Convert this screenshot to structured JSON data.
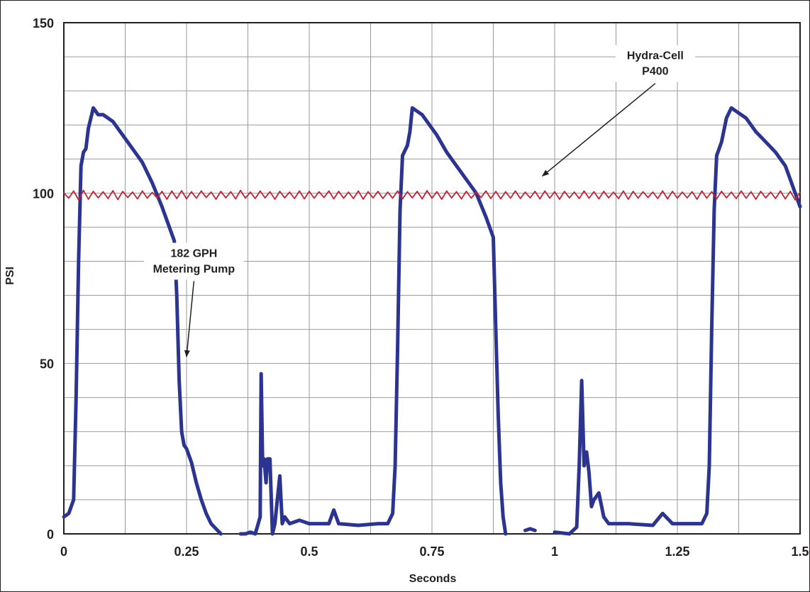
{
  "chart_data": {
    "type": "line",
    "title": "",
    "xlabel": "Seconds",
    "ylabel": "PSI",
    "xlim": [
      0,
      1.5
    ],
    "ylim": [
      0,
      150
    ],
    "grid": true,
    "x_ticks": [
      {
        "value": 0,
        "label": "0"
      },
      {
        "value": 0.25,
        "label": "0.25"
      },
      {
        "value": 0.5,
        "label": "0.5"
      },
      {
        "value": 0.75,
        "label": "0.75"
      },
      {
        "value": 1,
        "label": "1"
      },
      {
        "value": 1.25,
        "label": "1.25"
      },
      {
        "value": 1.5,
        "label": "1.5"
      }
    ],
    "y_ticks": [
      {
        "value": 0,
        "label": "0"
      },
      {
        "value": 50,
        "label": "50"
      },
      {
        "value": 100,
        "label": "100"
      },
      {
        "value": 150,
        "label": "150"
      }
    ],
    "x_minor_step": 0.125,
    "y_minor_step": 10,
    "series": [
      {
        "color": "#2b3490",
        "points": [
          [
            0.0,
            5
          ],
          [
            0.01,
            6
          ],
          [
            0.02,
            10
          ],
          [
            0.025,
            40
          ],
          [
            0.03,
            80
          ],
          [
            0.035,
            108
          ],
          [
            0.04,
            112
          ],
          [
            0.045,
            113
          ],
          [
            0.05,
            119
          ],
          [
            0.055,
            122
          ],
          [
            0.06,
            125
          ],
          [
            0.065,
            124
          ],
          [
            0.07,
            123
          ],
          [
            0.08,
            123
          ],
          [
            0.09,
            122
          ],
          [
            0.1,
            121
          ],
          [
            0.11,
            119
          ],
          [
            0.12,
            117
          ],
          [
            0.14,
            113
          ],
          [
            0.16,
            109
          ],
          [
            0.18,
            103
          ],
          [
            0.2,
            96
          ],
          [
            0.21,
            92
          ],
          [
            0.22,
            88
          ],
          [
            0.225,
            86
          ],
          [
            0.23,
            70
          ],
          [
            0.235,
            45
          ],
          [
            0.24,
            30
          ],
          [
            0.245,
            26
          ],
          [
            0.25,
            25
          ],
          [
            0.26,
            21
          ],
          [
            0.27,
            15
          ],
          [
            0.28,
            10
          ],
          [
            0.29,
            6
          ],
          [
            0.3,
            3
          ],
          [
            0.31,
            1.5
          ],
          [
            0.32,
            0
          ],
          [
            0.35,
            null
          ],
          [
            0.36,
            0
          ],
          [
            0.37,
            0
          ],
          [
            0.38,
            0.5
          ],
          [
            0.39,
            0
          ],
          [
            0.4,
            5
          ],
          [
            0.402,
            47
          ],
          [
            0.405,
            20
          ],
          [
            0.408,
            22
          ],
          [
            0.412,
            15
          ],
          [
            0.415,
            22
          ],
          [
            0.42,
            22
          ],
          [
            0.425,
            0
          ],
          [
            0.43,
            3
          ],
          [
            0.435,
            10
          ],
          [
            0.44,
            17
          ],
          [
            0.445,
            3
          ],
          [
            0.45,
            5
          ],
          [
            0.46,
            3
          ],
          [
            0.48,
            4
          ],
          [
            0.5,
            3
          ],
          [
            0.52,
            3
          ],
          [
            0.54,
            3
          ],
          [
            0.55,
            7
          ],
          [
            0.56,
            3
          ],
          [
            0.6,
            2.5
          ],
          [
            0.64,
            3
          ],
          [
            0.66,
            3
          ],
          [
            0.67,
            6
          ],
          [
            0.675,
            20
          ],
          [
            0.68,
            55
          ],
          [
            0.685,
            95
          ],
          [
            0.69,
            111
          ],
          [
            0.7,
            114
          ],
          [
            0.705,
            118
          ],
          [
            0.71,
            125
          ],
          [
            0.72,
            124
          ],
          [
            0.73,
            123
          ],
          [
            0.74,
            121
          ],
          [
            0.76,
            117
          ],
          [
            0.78,
            112
          ],
          [
            0.8,
            108
          ],
          [
            0.82,
            104
          ],
          [
            0.84,
            100
          ],
          [
            0.86,
            93
          ],
          [
            0.875,
            87
          ],
          [
            0.88,
            60
          ],
          [
            0.885,
            35
          ],
          [
            0.89,
            15
          ],
          [
            0.895,
            5
          ],
          [
            0.9,
            0
          ],
          [
            0.93,
            null
          ],
          [
            0.94,
            1
          ],
          [
            0.95,
            1.5
          ],
          [
            0.96,
            1
          ],
          [
            0.99,
            null
          ],
          [
            1.0,
            0.5
          ],
          [
            1.03,
            0
          ],
          [
            1.045,
            2
          ],
          [
            1.05,
            20
          ],
          [
            1.055,
            45
          ],
          [
            1.06,
            20
          ],
          [
            1.065,
            24
          ],
          [
            1.07,
            18
          ],
          [
            1.075,
            8
          ],
          [
            1.08,
            10
          ],
          [
            1.09,
            12
          ],
          [
            1.1,
            5
          ],
          [
            1.11,
            3
          ],
          [
            1.15,
            3
          ],
          [
            1.2,
            2.5
          ],
          [
            1.22,
            6
          ],
          [
            1.24,
            3
          ],
          [
            1.28,
            3
          ],
          [
            1.3,
            3
          ],
          [
            1.31,
            6
          ],
          [
            1.315,
            20
          ],
          [
            1.32,
            60
          ],
          [
            1.325,
            95
          ],
          [
            1.33,
            111
          ],
          [
            1.34,
            115
          ],
          [
            1.35,
            122
          ],
          [
            1.36,
            125
          ],
          [
            1.37,
            124
          ],
          [
            1.38,
            123
          ],
          [
            1.39,
            122
          ],
          [
            1.41,
            118
          ],
          [
            1.43,
            115
          ],
          [
            1.45,
            112
          ],
          [
            1.47,
            108
          ],
          [
            1.48,
            104
          ],
          [
            1.49,
            100
          ],
          [
            1.5,
            96
          ]
        ]
      },
      {
        "color": "#c8202f",
        "points": [
          [
            0.0,
            100
          ],
          [
            0.01,
            98.5
          ],
          [
            0.02,
            100.6
          ],
          [
            0.03,
            98
          ],
          [
            0.04,
            100.8
          ],
          [
            0.05,
            98.2
          ],
          [
            0.06,
            100.5
          ],
          [
            0.07,
            98.6
          ],
          [
            0.08,
            100.4
          ],
          [
            0.09,
            98.4
          ],
          [
            0.1,
            100.7
          ],
          [
            0.11,
            98.1
          ],
          [
            0.12,
            100.5
          ],
          [
            0.13,
            98.7
          ],
          [
            0.14,
            100.3
          ],
          [
            0.15,
            98.3
          ],
          [
            0.16,
            100.6
          ],
          [
            0.17,
            98.5
          ],
          [
            0.18,
            100.2
          ],
          [
            0.19,
            98.6
          ],
          [
            0.2,
            100.5
          ],
          [
            0.21,
            98.2
          ],
          [
            0.22,
            100.6
          ],
          [
            0.23,
            98.4
          ],
          [
            0.24,
            100.7
          ],
          [
            0.25,
            98.3
          ],
          [
            0.26,
            100.4
          ],
          [
            0.27,
            98.5
          ],
          [
            0.28,
            100.6
          ],
          [
            0.29,
            98.7
          ],
          [
            0.3,
            100.3
          ],
          [
            0.31,
            98.2
          ],
          [
            0.32,
            100.5
          ],
          [
            0.33,
            98.6
          ],
          [
            0.34,
            100.4
          ],
          [
            0.35,
            98.3
          ],
          [
            0.36,
            100.8
          ],
          [
            0.37,
            98.5
          ],
          [
            0.38,
            100.3
          ],
          [
            0.39,
            98.4
          ],
          [
            0.4,
            100.6
          ],
          [
            0.41,
            98.6
          ],
          [
            0.42,
            100.4
          ],
          [
            0.43,
            98.2
          ],
          [
            0.44,
            100.5
          ],
          [
            0.45,
            98.6
          ],
          [
            0.46,
            100.3
          ],
          [
            0.47,
            98.4
          ],
          [
            0.48,
            100.6
          ],
          [
            0.49,
            98.3
          ],
          [
            0.5,
            100.5
          ],
          [
            0.51,
            98.5
          ],
          [
            0.52,
            100.4
          ],
          [
            0.53,
            98.7
          ],
          [
            0.54,
            100.6
          ],
          [
            0.55,
            98.3
          ],
          [
            0.56,
            100.5
          ],
          [
            0.57,
            98.5
          ],
          [
            0.58,
            100.3
          ],
          [
            0.59,
            98.4
          ],
          [
            0.6,
            100.6
          ],
          [
            0.61,
            98.2
          ],
          [
            0.62,
            100.4
          ],
          [
            0.63,
            98.6
          ],
          [
            0.64,
            100.5
          ],
          [
            0.65,
            98.4
          ],
          [
            0.66,
            100.3
          ],
          [
            0.67,
            98.5
          ],
          [
            0.68,
            100.6
          ],
          [
            0.69,
            98.3
          ],
          [
            0.7,
            100.4
          ],
          [
            0.71,
            98.6
          ],
          [
            0.72,
            100.5
          ],
          [
            0.73,
            98.3
          ],
          [
            0.74,
            100.7
          ],
          [
            0.75,
            98.5
          ],
          [
            0.76,
            100.4
          ],
          [
            0.77,
            98.2
          ],
          [
            0.78,
            100.6
          ],
          [
            0.79,
            98.6
          ],
          [
            0.8,
            100.4
          ],
          [
            0.81,
            98.3
          ],
          [
            0.82,
            100.5
          ],
          [
            0.83,
            98.5
          ],
          [
            0.84,
            100.3
          ],
          [
            0.85,
            98.7
          ],
          [
            0.86,
            100.6
          ],
          [
            0.87,
            98.4
          ],
          [
            0.88,
            100.5
          ],
          [
            0.89,
            98.3
          ],
          [
            0.9,
            100.4
          ],
          [
            0.91,
            98.5
          ],
          [
            0.92,
            100.6
          ],
          [
            0.93,
            98.4
          ],
          [
            0.94,
            100.3
          ],
          [
            0.95,
            98.6
          ],
          [
            0.96,
            100.5
          ],
          [
            0.97,
            98.3
          ],
          [
            0.98,
            100.6
          ],
          [
            0.99,
            98.5
          ],
          [
            1.0,
            100.4
          ],
          [
            1.01,
            98.2
          ],
          [
            1.02,
            100.5
          ],
          [
            1.03,
            98.6
          ],
          [
            1.04,
            100.3
          ],
          [
            1.05,
            98.4
          ],
          [
            1.06,
            100.6
          ],
          [
            1.07,
            98.5
          ],
          [
            1.08,
            100.4
          ],
          [
            1.09,
            98.3
          ],
          [
            1.1,
            100.5
          ],
          [
            1.11,
            98.6
          ],
          [
            1.12,
            100.3
          ],
          [
            1.13,
            98.4
          ],
          [
            1.14,
            100.6
          ],
          [
            1.15,
            98.2
          ],
          [
            1.16,
            100.5
          ],
          [
            1.17,
            98.5
          ],
          [
            1.18,
            100.4
          ],
          [
            1.19,
            98.7
          ],
          [
            1.2,
            100.3
          ],
          [
            1.21,
            98.4
          ],
          [
            1.22,
            100.6
          ],
          [
            1.23,
            98.3
          ],
          [
            1.24,
            100.5
          ],
          [
            1.25,
            98.5
          ],
          [
            1.26,
            100.3
          ],
          [
            1.27,
            98.6
          ],
          [
            1.28,
            100.4
          ],
          [
            1.29,
            98.2
          ],
          [
            1.3,
            100.6
          ],
          [
            1.31,
            98.5
          ],
          [
            1.32,
            100.4
          ],
          [
            1.33,
            98.3
          ],
          [
            1.34,
            100.5
          ],
          [
            1.35,
            98.6
          ],
          [
            1.36,
            100.3
          ],
          [
            1.37,
            98.4
          ],
          [
            1.38,
            100.6
          ],
          [
            1.39,
            98.5
          ],
          [
            1.4,
            100.4
          ],
          [
            1.41,
            98.2
          ],
          [
            1.42,
            100.5
          ],
          [
            1.43,
            98.6
          ],
          [
            1.44,
            100.3
          ],
          [
            1.45,
            98.4
          ],
          [
            1.46,
            100.6
          ],
          [
            1.47,
            98.3
          ],
          [
            1.48,
            100.5
          ],
          [
            1.49,
            98.0
          ],
          [
            1.5,
            100.2
          ]
        ]
      }
    ],
    "annotations": [
      {
        "lines": [
          "Hydra-Cell",
          "P400"
        ],
        "text_x": 1.205,
        "text_y": 138,
        "arrow_to": [
          0.975,
          105
        ]
      },
      {
        "lines": [
          "182 GPH",
          "Metering Pump"
        ],
        "text_x": 0.265,
        "text_y": 80,
        "arrow_to": [
          0.25,
          52
        ]
      }
    ]
  }
}
